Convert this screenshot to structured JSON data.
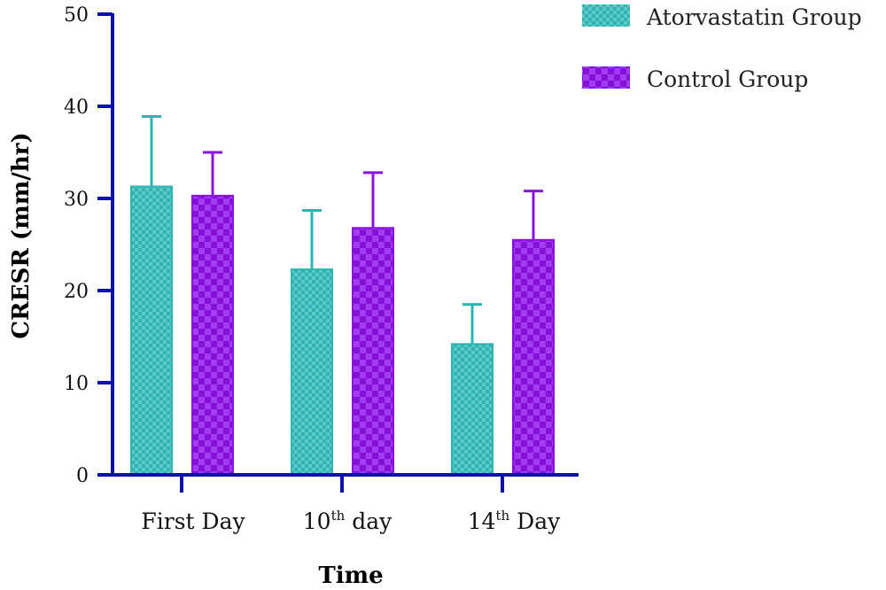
{
  "chart_data": {
    "type": "bar",
    "xlabel": "Time",
    "ylabel": "CRESR (mm/hr)",
    "ylim": [
      0,
      50
    ],
    "yticks": [
      "0",
      "10",
      "20",
      "30",
      "40",
      "50"
    ],
    "categories": [
      {
        "label": "First Day",
        "base": "First Day",
        "sup": ""
      },
      {
        "label": "10th day",
        "base": "10",
        "sup": "th",
        "rest": " day"
      },
      {
        "label": "14th Day",
        "base": "14",
        "sup": "th",
        "rest": " Day"
      }
    ],
    "series": [
      {
        "name": "Atorvastatin Group",
        "values": [
          31.3,
          22.3,
          14.2
        ],
        "errors": [
          7.6,
          6.4,
          4.3
        ],
        "color": "#2fb4b4",
        "pattern": "checker-fine"
      },
      {
        "name": "Control Group",
        "values": [
          30.3,
          26.8,
          25.5
        ],
        "errors": [
          4.7,
          6.0,
          5.3
        ],
        "color": "#8a12dc",
        "pattern": "checker-coarse"
      }
    ],
    "axis_color": "#0b12a8",
    "legend_position": "top-right",
    "grid": false
  }
}
